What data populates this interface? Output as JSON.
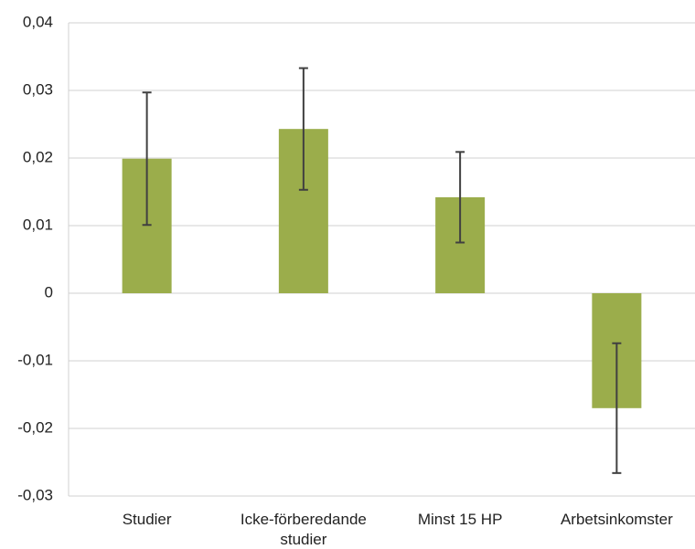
{
  "chart_data": {
    "type": "bar",
    "categories": [
      "Studier",
      "Icke-förberedande studier",
      "Minst 15 HP",
      "Arbetsinkomster"
    ],
    "values": [
      0.0199,
      0.0243,
      0.0142,
      -0.017
    ],
    "errors": [
      0.0098,
      0.009,
      0.0067,
      0.0096
    ],
    "color": "#9bad4b",
    "error_color": "#404040",
    "ylim": [
      -0.03,
      0.04
    ],
    "yticks": [
      {
        "value": -0.03,
        "label": "-0,03"
      },
      {
        "value": -0.02,
        "label": "-0,02"
      },
      {
        "value": -0.01,
        "label": "-0,01"
      },
      0,
      {
        "value": 0.01,
        "label": "0,01"
      },
      {
        "value": 0.02,
        "label": "0,02"
      },
      {
        "value": 0.03,
        "label": "0,03"
      },
      {
        "value": 0.04,
        "label": "0,04"
      }
    ],
    "grid": true
  }
}
